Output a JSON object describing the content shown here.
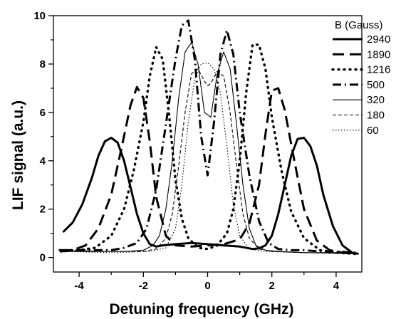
{
  "chart_data": {
    "type": "line",
    "title": "",
    "xlabel": "Detuning frequency (GHz)",
    "ylabel": "LIF signal (a.u.)",
    "xlim": [
      -4.8,
      4.8
    ],
    "ylim": [
      -0.6,
      10
    ],
    "xticks": [
      -4,
      -2,
      0,
      2,
      4
    ],
    "yticks": [
      0,
      2,
      4,
      6,
      8,
      10
    ],
    "grid": false,
    "legend": {
      "title": "B (Gauss)",
      "placement": "top-right"
    },
    "series": [
      {
        "name": "2940",
        "style": "solid-thick",
        "x": [
          -4.5,
          -4.2,
          -3.9,
          -3.6,
          -3.4,
          -3.2,
          -3.0,
          -2.8,
          -2.6,
          -2.4,
          -2.2,
          -2.0,
          -1.8,
          -1.6,
          -1.4,
          -1.0,
          -0.5,
          0,
          0.5,
          1.0,
          1.4,
          1.6,
          1.8,
          2.0,
          2.2,
          2.4,
          2.6,
          2.8,
          3.0,
          3.2,
          3.4,
          3.6,
          3.9,
          4.2,
          4.5,
          4.7
        ],
        "y": [
          1.05,
          1.45,
          2.2,
          3.3,
          4.2,
          4.8,
          4.95,
          4.75,
          4.0,
          2.9,
          1.8,
          1.0,
          0.55,
          0.45,
          0.5,
          0.55,
          0.6,
          0.55,
          0.5,
          0.45,
          0.35,
          0.38,
          0.5,
          0.9,
          1.8,
          3.0,
          4.2,
          4.9,
          4.95,
          4.6,
          3.8,
          2.6,
          1.3,
          0.5,
          0.2,
          0.15
        ]
      },
      {
        "name": "1890",
        "style": "dash-long",
        "x": [
          -4.6,
          -4.2,
          -3.8,
          -3.4,
          -3.0,
          -2.7,
          -2.4,
          -2.2,
          -2.0,
          -1.8,
          -1.6,
          -1.3,
          -1.0,
          -0.5,
          0,
          0.5,
          1.0,
          1.3,
          1.6,
          1.8,
          2.0,
          2.2,
          2.4,
          2.7,
          3.0,
          3.4,
          3.8,
          4.2,
          4.6
        ],
        "y": [
          0.3,
          0.3,
          0.5,
          1.2,
          2.6,
          4.4,
          6.3,
          7.05,
          6.6,
          4.8,
          2.5,
          0.9,
          0.5,
          0.45,
          0.5,
          0.55,
          0.75,
          1.4,
          3.0,
          5.1,
          6.9,
          7.0,
          6.1,
          4.0,
          2.0,
          0.7,
          0.3,
          0.2,
          0.15
        ]
      },
      {
        "name": "1216",
        "style": "dot",
        "x": [
          -4.6,
          -4.0,
          -3.5,
          -3.0,
          -2.6,
          -2.3,
          -2.0,
          -1.8,
          -1.6,
          -1.4,
          -1.2,
          -1.0,
          -0.8,
          -0.6,
          -0.3,
          0,
          0.3,
          0.6,
          0.8,
          1.0,
          1.2,
          1.4,
          1.6,
          1.8,
          2.0,
          2.3,
          2.6,
          3.0,
          3.5,
          4.0,
          4.6
        ],
        "y": [
          0.3,
          0.3,
          0.4,
          0.9,
          2.0,
          3.6,
          5.6,
          7.5,
          8.7,
          8.2,
          5.9,
          3.2,
          1.6,
          0.8,
          0.4,
          0.35,
          0.5,
          1.0,
          2.0,
          4.0,
          6.8,
          8.8,
          8.8,
          7.8,
          5.8,
          3.6,
          1.9,
          0.8,
          0.3,
          0.2,
          0.15
        ]
      },
      {
        "name": "500",
        "style": "dash-dot",
        "x": [
          -4.6,
          -4.0,
          -3.5,
          -3.0,
          -2.6,
          -2.2,
          -1.9,
          -1.6,
          -1.3,
          -1.0,
          -0.8,
          -0.6,
          -0.4,
          -0.2,
          0,
          0.2,
          0.4,
          0.6,
          0.8,
          1.0,
          1.3,
          1.6,
          1.9,
          2.2,
          2.6,
          3.0,
          3.5,
          4.0,
          4.6
        ],
        "y": [
          0.25,
          0.3,
          0.3,
          0.3,
          0.4,
          0.6,
          1.2,
          2.8,
          5.5,
          8.2,
          9.6,
          9.8,
          8.2,
          5.0,
          3.4,
          5.6,
          8.4,
          9.4,
          8.4,
          6.0,
          3.4,
          1.5,
          0.6,
          0.35,
          0.3,
          0.3,
          0.25,
          0.25,
          0.2
        ]
      },
      {
        "name": "320",
        "style": "solid-thin",
        "x": [
          -4.5,
          -3.5,
          -2.5,
          -2.0,
          -1.7,
          -1.5,
          -1.3,
          -1.1,
          -0.9,
          -0.7,
          -0.5,
          -0.3,
          -0.1,
          0.1,
          0.3,
          0.5,
          0.7,
          0.9,
          1.1,
          1.3,
          1.5,
          1.8,
          2.2,
          3.0,
          4.0,
          4.7
        ],
        "y": [
          0.25,
          0.25,
          0.25,
          0.3,
          0.5,
          0.9,
          2.0,
          4.0,
          6.6,
          8.5,
          8.9,
          8.0,
          6.0,
          5.8,
          7.6,
          8.5,
          7.8,
          5.5,
          3.0,
          1.2,
          0.5,
          0.3,
          0.25,
          0.2,
          0.2,
          0.15
        ]
      },
      {
        "name": "180",
        "style": "dash-short",
        "x": [
          -4.5,
          -3.0,
          -2.0,
          -1.6,
          -1.3,
          -1.1,
          -0.9,
          -0.7,
          -0.5,
          -0.3,
          -0.1,
          0,
          0.1,
          0.3,
          0.5,
          0.7,
          0.9,
          1.1,
          1.3,
          1.6,
          2.0,
          3.0,
          4.7
        ],
        "y": [
          0.3,
          0.25,
          0.25,
          0.35,
          0.8,
          1.8,
          3.8,
          6.0,
          7.6,
          7.8,
          7.3,
          7.1,
          7.2,
          7.7,
          7.5,
          6.0,
          3.8,
          1.8,
          0.8,
          0.35,
          0.25,
          0.2,
          0.15
        ]
      },
      {
        "name": "60",
        "style": "dot-fine",
        "x": [
          -4.5,
          -3.0,
          -1.8,
          -1.3,
          -1.0,
          -0.8,
          -0.6,
          -0.4,
          -0.2,
          0,
          0.2,
          0.4,
          0.6,
          0.8,
          1.0,
          1.3,
          1.8,
          3.0,
          4.7
        ],
        "y": [
          0.25,
          0.2,
          0.25,
          0.4,
          1.2,
          3.0,
          5.6,
          7.4,
          8.0,
          8.05,
          7.8,
          6.8,
          4.6,
          2.2,
          0.9,
          0.35,
          0.25,
          0.2,
          0.15
        ]
      }
    ]
  }
}
